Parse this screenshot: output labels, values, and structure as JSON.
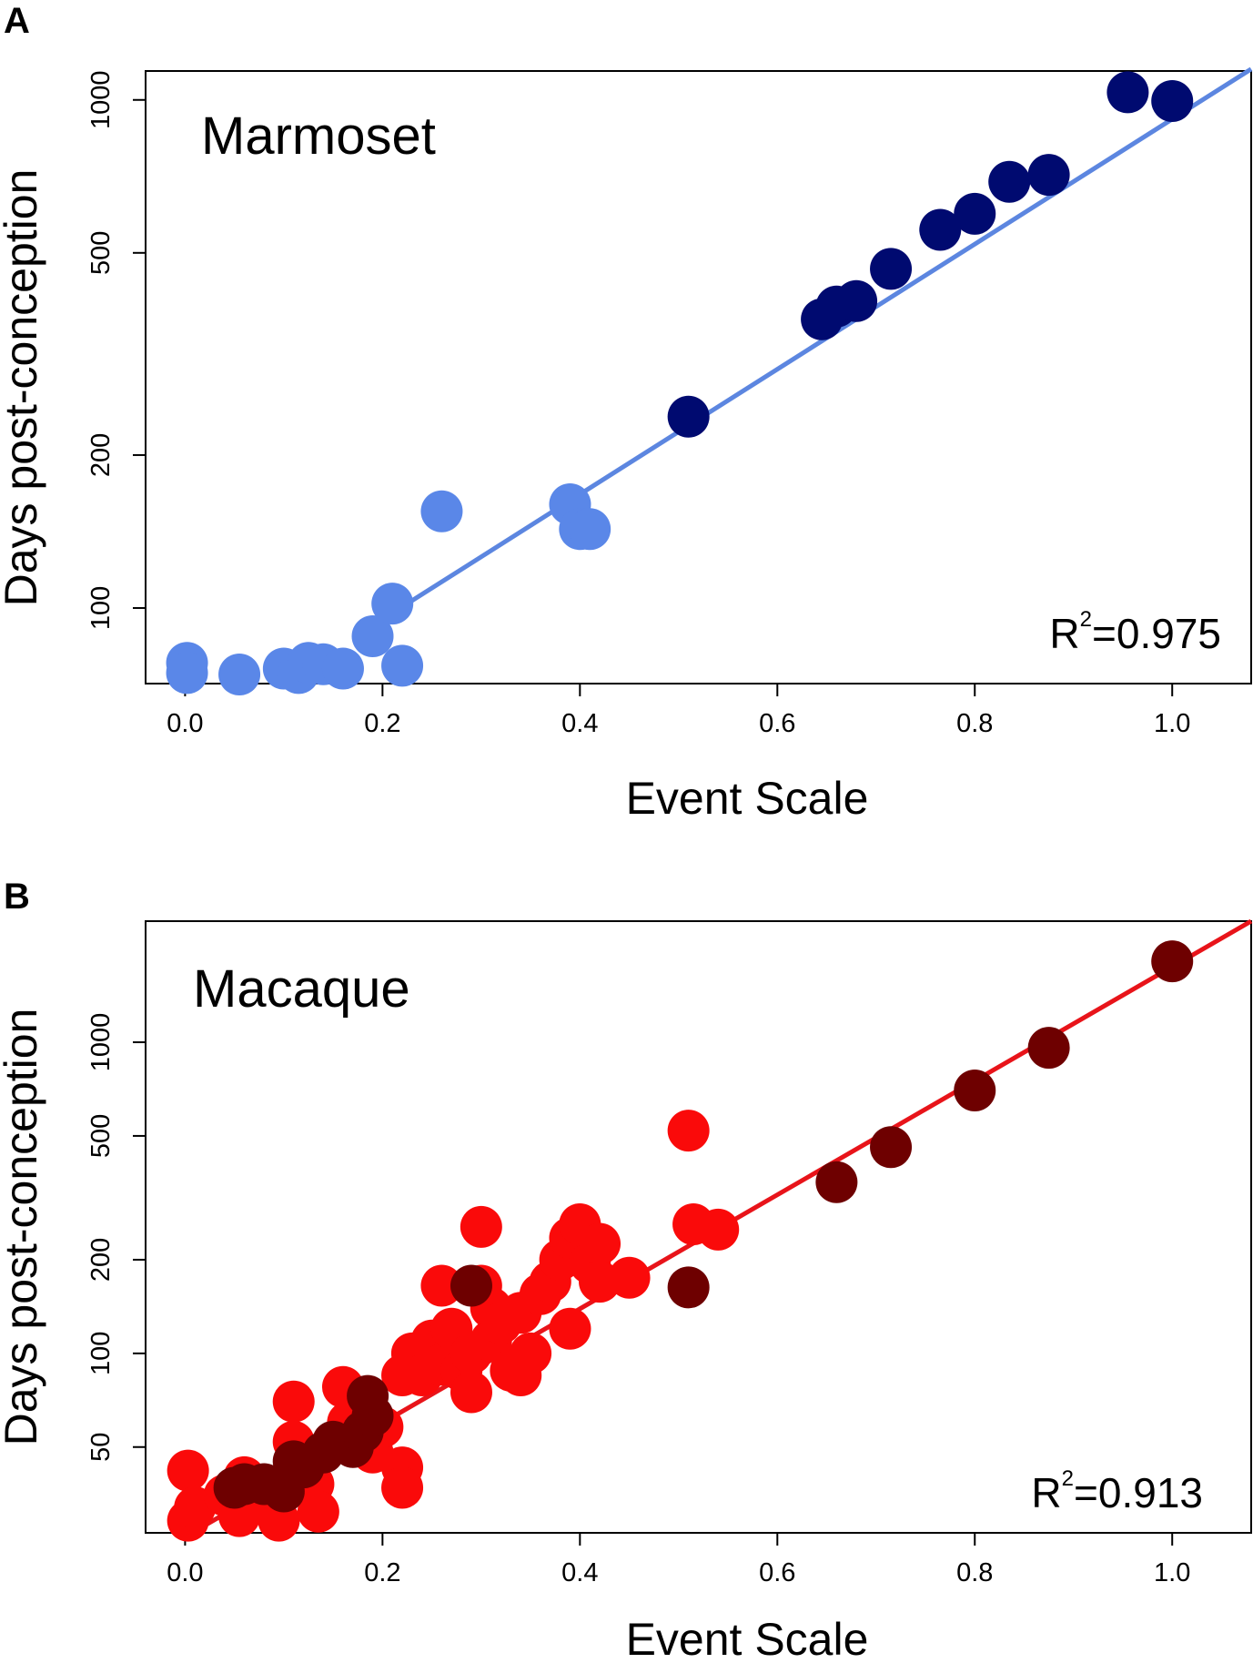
{
  "chart_data": [
    {
      "panel_label": "A",
      "type": "scatter",
      "title": "Marmoset",
      "xlabel": "Event Scale",
      "ylabel": "Days post-conception",
      "y_scale": "log",
      "xlim": [
        -0.04,
        1.08
      ],
      "ylim": [
        71,
        1140
      ],
      "x_ticks": [
        0.0,
        0.2,
        0.4,
        0.6,
        0.8,
        1.0
      ],
      "x_tick_labels": [
        "0.0",
        "0.2",
        "0.4",
        "0.6",
        "0.8",
        "1.0"
      ],
      "y_ticks": [
        100,
        200,
        500,
        1000
      ],
      "y_tick_labels": [
        "100",
        "200",
        "500",
        "1000"
      ],
      "annotation": {
        "base": "R",
        "sup": "2",
        "value": "=0.975"
      },
      "fit_line": {
        "color": "#5C86E0",
        "points": [
          [
            0.2,
            95
          ],
          [
            1.08,
            1150
          ]
        ]
      },
      "series": [
        {
          "name": "light",
          "color": "#5A87E8",
          "points": [
            [
              0.002,
              78
            ],
            [
              0.002,
              74.5
            ],
            [
              0.055,
              74
            ],
            [
              0.1,
              76
            ],
            [
              0.115,
              74.5
            ],
            [
              0.125,
              78
            ],
            [
              0.14,
              77.5
            ],
            [
              0.16,
              76
            ],
            [
              0.19,
              88
            ],
            [
              0.21,
              102
            ],
            [
              0.22,
              77
            ],
            [
              0.26,
              155
            ],
            [
              0.39,
              160
            ],
            [
              0.4,
              143
            ],
            [
              0.41,
              143
            ]
          ]
        },
        {
          "name": "dark",
          "color": "#000A70",
          "points": [
            [
              0.51,
              238
            ],
            [
              0.645,
              370
            ],
            [
              0.66,
              392
            ],
            [
              0.68,
              402
            ],
            [
              0.715,
              465
            ],
            [
              0.765,
              555
            ],
            [
              0.8,
              597
            ],
            [
              0.835,
              690
            ],
            [
              0.875,
              712
            ],
            [
              0.955,
              1035
            ],
            [
              1.0,
              995
            ]
          ]
        }
      ]
    },
    {
      "panel_label": "B",
      "type": "scatter",
      "title": "Macaque",
      "xlabel": "Event Scale",
      "ylabel": "Days post-conception",
      "y_scale": "log",
      "xlim": [
        -0.04,
        1.08
      ],
      "ylim": [
        26.5,
        2450
      ],
      "x_ticks": [
        0.0,
        0.2,
        0.4,
        0.6,
        0.8,
        1.0
      ],
      "x_tick_labels": [
        "0.0",
        "0.2",
        "0.4",
        "0.6",
        "0.8",
        "1.0"
      ],
      "y_ticks": [
        50,
        100,
        200,
        500,
        1000
      ],
      "y_tick_labels": [
        "50",
        "100",
        "200",
        "500",
        "1000"
      ],
      "annotation": {
        "base": "R",
        "sup": "2",
        "value": "=0.913"
      },
      "fit_line": {
        "color": "#E8141A",
        "points": [
          [
            0.02,
            28
          ],
          [
            1.08,
            2450
          ]
        ]
      },
      "series": [
        {
          "name": "light",
          "color": "#FA0A0A",
          "points": [
            [
              0.003,
              42
            ],
            [
              0.003,
              29
            ],
            [
              0.01,
              32
            ],
            [
              0.04,
              35
            ],
            [
              0.055,
              30
            ],
            [
              0.06,
              40
            ],
            [
              0.09,
              33
            ],
            [
              0.095,
              29
            ],
            [
              0.11,
              70
            ],
            [
              0.11,
              52
            ],
            [
              0.12,
              45
            ],
            [
              0.13,
              38
            ],
            [
              0.135,
              31
            ],
            [
              0.16,
              78
            ],
            [
              0.165,
              60
            ],
            [
              0.175,
              55
            ],
            [
              0.19,
              48
            ],
            [
              0.2,
              58
            ],
            [
              0.22,
              43
            ],
            [
              0.22,
              37
            ],
            [
              0.22,
              85
            ],
            [
              0.23,
              100
            ],
            [
              0.24,
              85
            ],
            [
              0.25,
              110
            ],
            [
              0.26,
              165
            ],
            [
              0.26,
              92
            ],
            [
              0.27,
              120
            ],
            [
              0.28,
              88
            ],
            [
              0.29,
              75
            ],
            [
              0.29,
              100
            ],
            [
              0.3,
              255
            ],
            [
              0.3,
              165
            ],
            [
              0.31,
              140
            ],
            [
              0.31,
              110
            ],
            [
              0.32,
              125
            ],
            [
              0.33,
              88
            ],
            [
              0.34,
              135
            ],
            [
              0.34,
              85
            ],
            [
              0.35,
              100
            ],
            [
              0.36,
              155
            ],
            [
              0.37,
              170
            ],
            [
              0.38,
              200
            ],
            [
              0.39,
              120
            ],
            [
              0.39,
              235
            ],
            [
              0.4,
              260
            ],
            [
              0.41,
              195
            ],
            [
              0.42,
              225
            ],
            [
              0.42,
              170
            ],
            [
              0.45,
              175
            ],
            [
              0.51,
              520
            ],
            [
              0.515,
              260
            ],
            [
              0.54,
              250
            ]
          ]
        },
        {
          "name": "dark",
          "color": "#6E0000",
          "points": [
            [
              0.05,
              37
            ],
            [
              0.06,
              38
            ],
            [
              0.08,
              38
            ],
            [
              0.1,
              36
            ],
            [
              0.11,
              45
            ],
            [
              0.12,
              43
            ],
            [
              0.14,
              48
            ],
            [
              0.15,
              52
            ],
            [
              0.17,
              50
            ],
            [
              0.18,
              56
            ],
            [
              0.185,
              73
            ],
            [
              0.19,
              63
            ],
            [
              0.29,
              165
            ],
            [
              0.51,
              163
            ],
            [
              0.66,
              355
            ],
            [
              0.715,
              460
            ],
            [
              0.8,
              700
            ],
            [
              0.875,
              960
            ],
            [
              1.0,
              1820
            ]
          ]
        }
      ]
    }
  ]
}
